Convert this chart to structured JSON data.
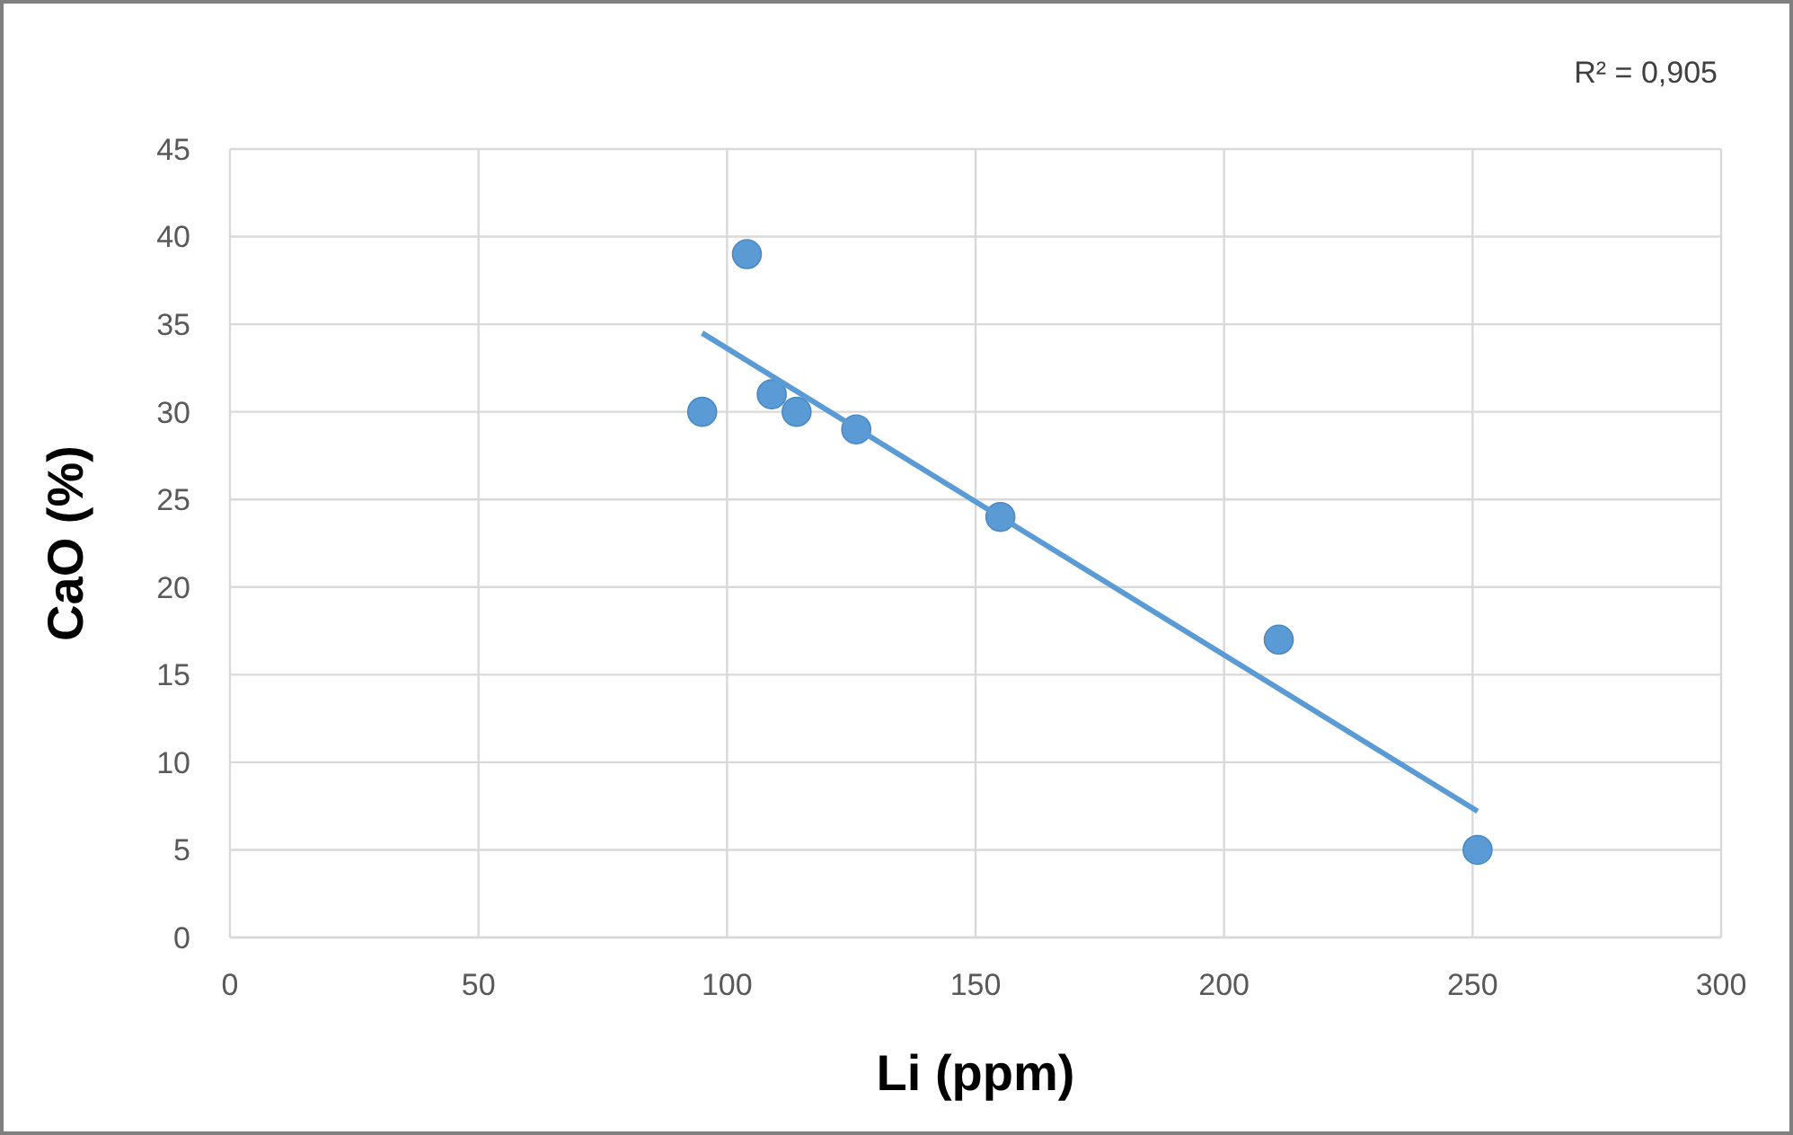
{
  "chart_data": {
    "type": "scatter",
    "xlabel": "Li (ppm)",
    "ylabel": "CaO (%)",
    "annotations": [
      "R² = 0,905"
    ],
    "xlim": [
      0,
      300
    ],
    "xticks": [
      0,
      50,
      100,
      150,
      200,
      250,
      300
    ],
    "ylim": [
      0,
      45
    ],
    "yticks": [
      0,
      5,
      10,
      15,
      20,
      25,
      30,
      35,
      40,
      45
    ],
    "grid": true,
    "series": [
      {
        "color": "#5b9bd5",
        "marker": "circle",
        "x": [
          95,
          104,
          109,
          114,
          126,
          155,
          211,
          251
        ],
        "values": [
          30,
          39,
          31,
          30,
          29,
          24,
          17,
          5
        ]
      },
      {
        "type": "line",
        "color": "#5b9bd5",
        "x": [
          95,
          251
        ],
        "values": [
          34.5,
          7.2
        ],
        "line_style": "solid"
      }
    ]
  }
}
